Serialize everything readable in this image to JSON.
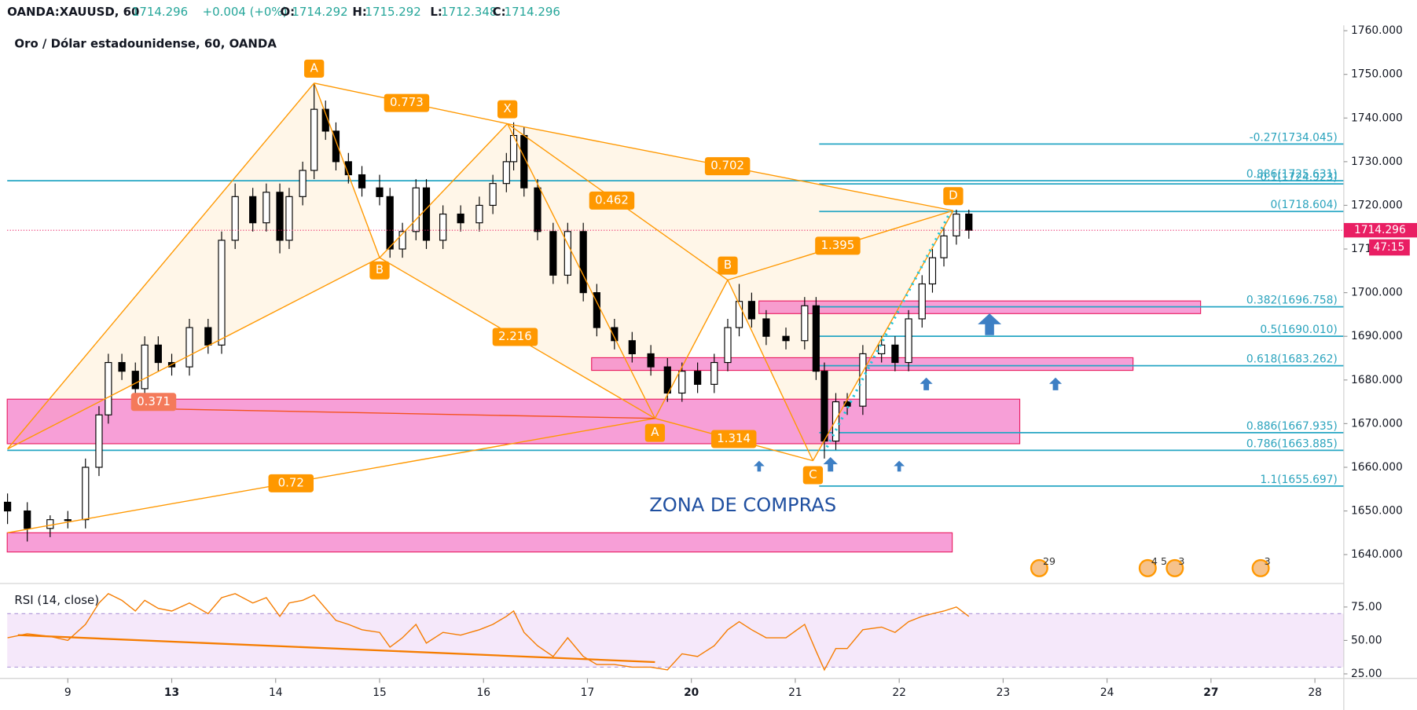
{
  "chart_data": [
    {
      "type": "candlestick",
      "header": [
        "OANDA:XAUUSD, 60",
        1714.296,
        "+0.004 (+0%)",
        "O:",
        1714.292,
        "H:",
        1715.292,
        "L:",
        1712.348,
        "C:",
        1714.296
      ],
      "title": "Oro / Dólar estadounidense, 60, OANDA",
      "xlim": [
        -0.583,
        12.278
      ],
      "xticks": [
        {
          "value": 0,
          "label": "9"
        },
        {
          "value": 1,
          "label": "13"
        },
        {
          "value": 2,
          "label": "14"
        },
        {
          "value": 3,
          "label": "15"
        },
        {
          "value": 4,
          "label": "16"
        },
        {
          "value": 5,
          "label": "17"
        },
        {
          "value": 6,
          "label": "20"
        },
        {
          "value": 7,
          "label": "21"
        },
        {
          "value": 8,
          "label": "22"
        },
        {
          "value": 9,
          "label": "23"
        },
        {
          "value": 10,
          "label": "24"
        },
        {
          "value": 11,
          "label": "27"
        },
        {
          "value": 12,
          "label": "28"
        }
      ],
      "ylim": [
        1633.58,
        1761.24
      ],
      "yticks": [
        {
          "value": 1640,
          "label": "1640.000"
        },
        {
          "value": 1650,
          "label": "1650.000"
        },
        {
          "value": 1660,
          "label": "1660.000"
        },
        {
          "value": 1670,
          "label": "1670.000"
        },
        {
          "value": 1680,
          "label": "1680.000"
        },
        {
          "value": 1690,
          "label": "1690.000"
        },
        {
          "value": 1700,
          "label": "1700.000"
        },
        {
          "value": 1710,
          "label": "1710.000"
        },
        {
          "value": 1720,
          "label": "1720.000"
        },
        {
          "value": 1730,
          "label": "1730.000"
        },
        {
          "value": 1740,
          "label": "1740.000"
        },
        {
          "value": 1750,
          "label": "1750.000"
        },
        {
          "value": 1760,
          "label": "1760.000"
        }
      ],
      "x": [
        -0.58,
        -0.39,
        -0.17,
        0,
        0.17,
        0.3,
        0.39,
        0.52,
        0.65,
        0.74,
        0.87,
        1,
        1.17,
        1.35,
        1.48,
        1.61,
        1.78,
        1.91,
        2.04,
        2.13,
        2.26,
        2.37,
        2.48,
        2.58,
        2.7,
        2.83,
        3,
        3.1,
        3.22,
        3.35,
        3.45,
        3.61,
        3.78,
        3.96,
        4.09,
        4.22,
        4.29,
        4.39,
        4.52,
        4.67,
        4.81,
        4.96,
        5.09,
        5.26,
        5.43,
        5.61,
        5.77,
        5.91,
        6.06,
        6.22,
        6.35,
        6.46,
        6.58,
        6.72,
        6.91,
        7.09,
        7.2,
        7.28,
        7.39,
        7.5,
        7.65,
        7.83,
        7.96,
        8.09,
        8.22,
        8.32,
        8.43,
        8.55,
        8.67
      ],
      "open": [
        1652,
        1650,
        1646,
        1648,
        1648,
        1660,
        1672,
        1684,
        1682,
        1678,
        1688,
        1684,
        1683,
        1692,
        1688,
        1712,
        1722,
        1716,
        1723,
        1712,
        1722,
        1728,
        1742,
        1737,
        1730,
        1727,
        1724,
        1722,
        1710,
        1714,
        1724,
        1712,
        1718,
        1716,
        1720,
        1725,
        1730,
        1736,
        1724,
        1714,
        1704,
        1714,
        1700,
        1692,
        1689,
        1686,
        1683,
        1677,
        1682,
        1679,
        1684,
        1692,
        1698,
        1694,
        1690,
        1689,
        1697,
        1682,
        1666,
        1675,
        1674,
        1686,
        1688,
        1684,
        1694,
        1702,
        1708,
        1713,
        1718
      ],
      "high": [
        1654,
        1652,
        1649,
        1650,
        1662,
        1674,
        1686,
        1686,
        1684,
        1690,
        1690,
        1686,
        1694,
        1694,
        1714,
        1725,
        1724,
        1725,
        1725,
        1724,
        1730,
        1748,
        1744,
        1739,
        1732,
        1729,
        1727,
        1724,
        1716,
        1726,
        1726,
        1720,
        1720,
        1722,
        1727,
        1732,
        1739,
        1738,
        1726,
        1716,
        1716,
        1716,
        1702,
        1694,
        1691,
        1688,
        1685,
        1684,
        1684,
        1686,
        1694,
        1702,
        1700,
        1696,
        1692,
        1699,
        1699,
        1684,
        1677,
        1677,
        1688,
        1690,
        1690,
        1696,
        1704,
        1710,
        1715,
        1719,
        1719
      ],
      "low": [
        1647,
        1643,
        1644,
        1646,
        1646,
        1658,
        1670,
        1680,
        1676,
        1676,
        1682,
        1681,
        1681,
        1686,
        1686,
        1710,
        1714,
        1714,
        1709,
        1710,
        1720,
        1726,
        1735,
        1728,
        1725,
        1722,
        1720,
        1708,
        1708,
        1712,
        1710,
        1710,
        1714,
        1714,
        1718,
        1723,
        1728,
        1722,
        1712,
        1702,
        1702,
        1698,
        1690,
        1687,
        1684,
        1681,
        1675,
        1675,
        1677,
        1677,
        1682,
        1690,
        1692,
        1688,
        1687,
        1687,
        1680,
        1662,
        1664,
        1672,
        1672,
        1684,
        1682,
        1682,
        1692,
        1700,
        1706,
        1711,
        1712.348
      ],
      "close": [
        1650,
        1646,
        1648,
        1648,
        1660,
        1672,
        1684,
        1682,
        1678,
        1688,
        1684,
        1683,
        1692,
        1688,
        1712,
        1722,
        1716,
        1723,
        1712,
        1722,
        1728,
        1742,
        1737,
        1730,
        1727,
        1724,
        1722,
        1710,
        1714,
        1724,
        1712,
        1718,
        1716,
        1720,
        1725,
        1730,
        1736,
        1724,
        1714,
        1704,
        1714,
        1700,
        1692,
        1689,
        1686,
        1683,
        1677,
        1682,
        1679,
        1684,
        1692,
        1698,
        1694,
        1690,
        1689,
        1697,
        1682,
        1666,
        1675,
        1674,
        1686,
        1688,
        1684,
        1694,
        1702,
        1708,
        1713,
        1718,
        1714.296
      ],
      "up_color": "#ffffff",
      "down_color": "#000000",
      "countdown": "47:15",
      "pattern": [
        {
          "label": null,
          "x": -0.58,
          "price": 1664.2
        },
        {
          "label": "A",
          "x": 2.37,
          "price": 1748
        },
        {
          "label": "B",
          "x": 3.0,
          "price": 1708
        },
        {
          "label": "X",
          "x": 4.23,
          "price": 1738.7
        },
        {
          "label": "A",
          "x": 5.65,
          "price": 1671.2
        },
        {
          "label": "B",
          "x": 6.35,
          "price": 1702.9
        },
        {
          "label": "C",
          "x": 7.17,
          "price": 1661.5
        },
        {
          "label": "D",
          "x": 8.52,
          "price": 1718.8
        },
        {
          "label": null,
          "x": -0.58,
          "price": 1645
        },
        {
          "label": null,
          "x": 0.65,
          "price": 1673.5
        }
      ],
      "ratios": [
        "0.773",
        "0.702",
        "0.462",
        "2.216",
        "1.395",
        "1.314",
        "0.72",
        "0.371"
      ],
      "fib_levels": [
        {
          "value": 1734.045,
          "label": "-0.27(1734.045)",
          "x0": 7.23
        },
        {
          "value": 1725.631,
          "label": "0.886(1725.631)",
          "x0": -0.583
        },
        {
          "value": 1724.923,
          "label": "-0.1(1724.923)",
          "x0": 7.23
        },
        {
          "value": 1718.604,
          "label": "0(1718.604)",
          "x0": 7.23
        },
        {
          "value": 1696.758,
          "label": "0.382(1696.758)",
          "x0": 7.23
        },
        {
          "value": 1690.01,
          "label": "0.5(1690.010)",
          "x0": 7.23
        },
        {
          "value": 1683.262,
          "label": "0.618(1683.262)",
          "x0": 7.23
        },
        {
          "value": 1667.935,
          "label": "0.886(1667.935)",
          "x0": 7.23
        },
        {
          "value": 1663.885,
          "label": "0.786(1663.885)",
          "x0": -0.583
        },
        {
          "value": 1655.697,
          "label": "1.1(1655.697)",
          "x0": 7.23
        }
      ],
      "zones": [
        {
          "x0": -0.583,
          "x1": 9.16,
          "y0": 1665.4,
          "y1": 1675.6
        },
        {
          "x0": 5.04,
          "x1": 10.25,
          "y0": 1682.2,
          "y1": 1685.1
        },
        {
          "x0": 6.65,
          "x1": 10.9,
          "y0": 1695.2,
          "y1": 1698.1
        },
        {
          "x0": -0.583,
          "x1": 8.51,
          "y0": 1640.6,
          "y1": 1645
        }
      ],
      "annotation": "ZONA DE COMPRAS",
      "events": [
        "29",
        "4 5",
        "3",
        "3"
      ]
    },
    {
      "type": "line",
      "title": "RSI (14, close)",
      "color": "#f57c00",
      "ylim": [
        22.3,
        91.2
      ],
      "yticks": [
        {
          "value": 75,
          "label": "75.00"
        },
        {
          "value": 50,
          "label": "50.00"
        },
        {
          "value": 25,
          "label": "25.00"
        }
      ],
      "band": [
        30,
        70
      ],
      "values": [
        52,
        55,
        53,
        50,
        62,
        78,
        85,
        80,
        72,
        80,
        74,
        72,
        78,
        70,
        82,
        85,
        78,
        82,
        68,
        78,
        80,
        84,
        74,
        65,
        62,
        58,
        56,
        45,
        52,
        62,
        48,
        56,
        54,
        58,
        62,
        68,
        72,
        56,
        46,
        38,
        52,
        38,
        32,
        32,
        30,
        30,
        28,
        40,
        38,
        46,
        58,
        64,
        58,
        52,
        52,
        62,
        42,
        28,
        44,
        44,
        58,
        60,
        56,
        64,
        68,
        70,
        72,
        75,
        68
      ],
      "trendline": {
        "x": [
          -0.48,
          5.65
        ],
        "y": [
          54,
          33.8
        ]
      }
    }
  ]
}
